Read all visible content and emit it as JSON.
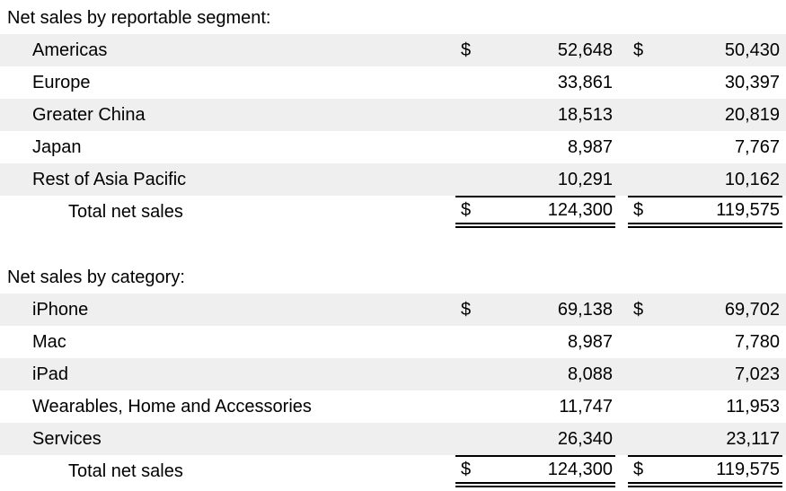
{
  "page": {
    "background_color": "#ffffff",
    "stripe_color": "#efefef",
    "text_color": "#000000"
  },
  "segment_section": {
    "header": "Net sales by reportable segment:",
    "rows": [
      {
        "label": "Americas",
        "d1": "$",
        "v1": "52,648",
        "d2": "$",
        "v2": "50,430"
      },
      {
        "label": "Europe",
        "d1": "",
        "v1": "33,861",
        "d2": "",
        "v2": "30,397"
      },
      {
        "label": "Greater China",
        "d1": "",
        "v1": "18,513",
        "d2": "",
        "v2": "20,819"
      },
      {
        "label": "Japan",
        "d1": "",
        "v1": "8,987",
        "d2": "",
        "v2": "7,767"
      },
      {
        "label": "Rest of Asia Pacific",
        "d1": "",
        "v1": "10,291",
        "d2": "",
        "v2": "10,162"
      }
    ],
    "total": {
      "label": "Total net sales",
      "d1": "$",
      "v1": "124,300",
      "d2": "$",
      "v2": "119,575"
    }
  },
  "category_section": {
    "header": "Net sales by category:",
    "rows": [
      {
        "label": "iPhone",
        "d1": "$",
        "v1": "69,138",
        "d2": "$",
        "v2": "69,702"
      },
      {
        "label": "Mac",
        "d1": "",
        "v1": "8,987",
        "d2": "",
        "v2": "7,780"
      },
      {
        "label": "iPad",
        "d1": "",
        "v1": "8,088",
        "d2": "",
        "v2": "7,023"
      },
      {
        "label": "Wearables, Home and Accessories",
        "d1": "",
        "v1": "11,747",
        "d2": "",
        "v2": "11,953"
      },
      {
        "label": "Services",
        "d1": "",
        "v1": "26,340",
        "d2": "",
        "v2": "23,117"
      }
    ],
    "total": {
      "label": "Total net sales",
      "d1": "$",
      "v1": "124,300",
      "d2": "$",
      "v2": "119,575"
    }
  }
}
